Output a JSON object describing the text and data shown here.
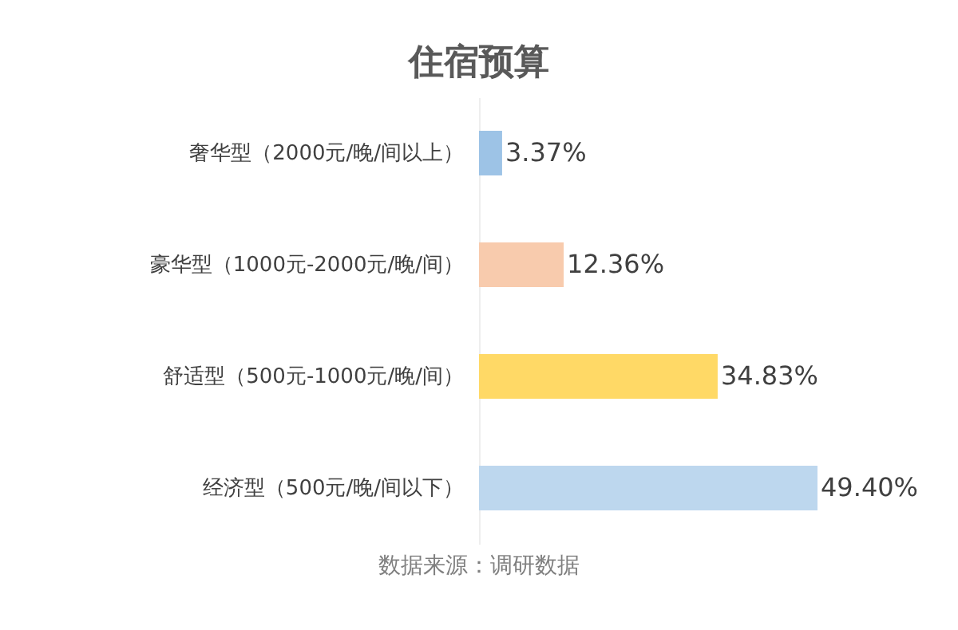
{
  "chart_data": {
    "type": "bar",
    "orientation": "horizontal",
    "title": "住宿预算",
    "categories": [
      "奢华型（2000元/晚/间以上）",
      "豪华型（1000元-2000元/晚/间）",
      "舒适型（500元-1000元/晚/间）",
      "经济型（500元/晚/间以下）"
    ],
    "values": [
      3.37,
      12.36,
      34.83,
      49.4
    ],
    "value_labels": [
      "3.37%",
      "12.36%",
      "34.83%",
      "49.40%"
    ],
    "colors": [
      "#9dc3e6",
      "#f8cbad",
      "#ffd966",
      "#bdd7ee"
    ],
    "annotations": [
      "数据来源：调研数据"
    ]
  }
}
